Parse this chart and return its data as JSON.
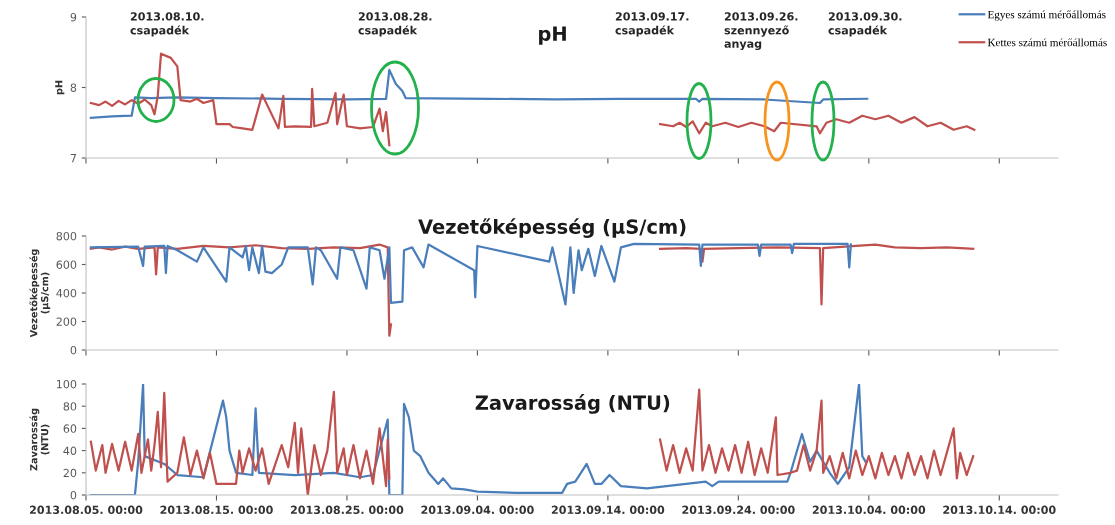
{
  "chart_data": [
    {
      "type": "line",
      "title": "pH",
      "ylabel": "pH",
      "legend": "top right",
      "tick_labels": "y",
      "xlim": [
        "2013-08-05",
        "2013-10-18T12:00"
      ],
      "xticks": [
        {
          "value": "2013-08-05",
          "label": null
        },
        {
          "value": "2013-08-15",
          "label": null
        },
        {
          "value": "2013-08-25",
          "label": null
        },
        {
          "value": "2013-09-04",
          "label": null
        },
        {
          "value": "2013-09-14",
          "label": null
        },
        {
          "value": "2013-09-24",
          "label": null
        },
        {
          "value": "2013-10-04",
          "label": null
        },
        {
          "value": "2013-10-14",
          "label": null
        }
      ],
      "ylim": [
        7,
        9
      ],
      "yticks": [
        7,
        8,
        9
      ],
      "annotations": [
        "2013.08.10.\ncsapadék",
        "2013.08.28.\ncsapadék",
        "2013.09.17.\ncsapadék",
        "2013.09.26.\nszennyező\nanyag",
        "2013.09.30.\ncsapadék"
      ],
      "series": [
        {
          "name": "Egyes számú mérőállomás",
          "color": "#4a7ebb",
          "x": [
            "2013-08-05T09:00",
            "2013-08-07T00:00",
            "2013-08-08T12:00",
            "2013-08-08T18:00",
            "2013-08-10T00:00",
            "2013-08-12T00:00",
            "2013-08-15T00:00",
            "2013-08-20T00:00",
            "2013-08-25T00:00",
            "2013-08-28T00:00",
            "2013-08-28T06:00",
            "2013-08-28T18:00",
            "2013-08-29T06:00",
            "2013-08-29T12:00",
            "2013-09-05T00:00",
            "2013-09-10T00:00",
            "2013-09-15T00:00",
            "2013-09-20T18:00",
            "2013-09-21T00:00",
            "2013-09-21T06:00",
            "2013-09-26T00:00",
            "2013-09-30T06:00",
            "2013-09-30T12:00",
            "2013-10-03T21:00"
          ],
          "values": [
            7.57,
            7.59,
            7.6,
            7.86,
            7.85,
            7.86,
            7.85,
            7.84,
            7.83,
            7.84,
            8.25,
            8.05,
            7.95,
            7.85,
            7.84,
            7.83,
            7.84,
            7.84,
            7.8,
            7.84,
            7.83,
            7.78,
            7.83,
            7.84
          ]
        },
        {
          "name": "Kettes számú mérőállomás",
          "color": "#c0504d",
          "x": [
            "2013-08-05T09:00",
            "2013-08-06T00:00",
            "2013-08-06T12:00",
            "2013-08-07T00:00",
            "2013-08-07T12:00",
            "2013-08-08T00:00",
            "2013-08-08T12:00",
            "2013-08-09T00:00",
            "2013-08-09T12:00",
            "2013-08-10T00:00",
            "2013-08-10T06:00",
            "2013-08-10T12:00",
            "2013-08-10T18:00",
            "2013-08-11T12:00",
            "2013-08-12T00:00",
            "2013-08-12T06:00",
            "2013-08-13T00:00",
            "2013-08-13T12:00",
            "2013-08-14T00:00",
            "2013-08-14T18:00",
            "2013-08-15T00:00",
            "2013-08-16T00:00",
            "2013-08-16T06:00",
            "2013-08-17T00:00",
            "2013-08-17T18:00",
            "2013-08-18T12:00",
            "2013-08-19T18:00",
            "2013-08-20T03:00",
            "2013-08-20T06:00",
            "2013-08-21T00:00",
            "2013-08-22T06:00",
            "2013-08-22T08:00",
            "2013-08-22T12:00",
            "2013-08-23T12:00",
            "2013-08-24T03:00",
            "2013-08-24T06:00",
            "2013-08-24T18:00",
            "2013-08-25T00:00",
            "2013-08-26T00:00",
            "2013-08-27T00:00",
            "2013-08-27T12:00",
            "2013-08-27T18:00",
            "2013-08-28T00:00",
            "2013-08-28T06:00",
            "2013-09-01T00:00",
            "2013-09-18T00:00",
            "2013-09-19T00:00",
            "2013-09-19T12:00",
            "2013-09-20T00:00",
            "2013-09-20T12:00",
            "2013-09-21T00:00",
            "2013-09-21T12:00",
            "2013-09-22T00:00",
            "2013-09-23T00:00",
            "2013-09-24T00:00",
            "2013-09-25T00:00",
            "2013-09-26T00:00",
            "2013-09-26T18:00",
            "2013-09-27T06:00",
            "2013-09-30T00:00",
            "2013-09-30T06:00",
            "2013-09-30T18:00",
            "2013-10-01T12:00",
            "2013-10-02T12:00",
            "2013-10-03T12:00",
            "2013-10-04T12:00",
            "2013-10-05T12:00",
            "2013-10-06T12:00",
            "2013-10-07T12:00",
            "2013-10-08T12:00",
            "2013-10-09T12:00",
            "2013-10-10T12:00",
            "2013-10-11T12:00",
            "2013-10-12T02:00"
          ],
          "values": [
            7.78,
            7.75,
            7.8,
            7.74,
            7.81,
            7.76,
            7.82,
            7.77,
            7.83,
            7.75,
            7.62,
            7.88,
            8.48,
            8.42,
            8.3,
            7.82,
            7.8,
            7.84,
            7.78,
            7.82,
            7.48,
            7.48,
            7.44,
            7.42,
            7.4,
            7.9,
            7.42,
            7.88,
            7.44,
            7.45,
            7.44,
            7.98,
            7.45,
            7.5,
            7.92,
            7.48,
            7.9,
            7.45,
            7.42,
            7.44,
            7.7,
            7.38,
            7.65,
            7.18,
            null,
            7.48,
            7.45,
            7.5,
            7.44,
            7.52,
            7.35,
            7.5,
            7.45,
            7.5,
            7.44,
            7.5,
            7.45,
            7.38,
            7.5,
            7.45,
            7.35,
            7.5,
            7.55,
            7.5,
            7.6,
            7.55,
            7.6,
            7.5,
            7.58,
            7.45,
            7.5,
            7.4,
            7.45,
            7.4
          ]
        }
      ]
    },
    {
      "type": "line",
      "title": "Vezetőképesség (µS/cm)",
      "ylabel": "Vezetőképesség\n(µS/cm)",
      "tick_labels": "y",
      "xlim": [
        "2013-08-05",
        "2013-10-18T12:00"
      ],
      "xticks": [
        {
          "value": "2013-08-05",
          "label": null
        },
        {
          "value": "2013-08-15",
          "label": null
        },
        {
          "value": "2013-08-25",
          "label": null
        },
        {
          "value": "2013-09-04",
          "label": null
        },
        {
          "value": "2013-09-14",
          "label": null
        },
        {
          "value": "2013-09-24",
          "label": null
        },
        {
          "value": "2013-10-04",
          "label": null
        },
        {
          "value": "2013-10-14",
          "label": null
        }
      ],
      "ylim": [
        0,
        800
      ],
      "yticks": [
        0,
        200,
        400,
        600,
        800
      ],
      "series": [
        {
          "color": "#c0504d",
          "x": [
            "2013-08-05T09:00",
            "2013-08-06T00:00",
            "2013-08-07T00:00",
            "2013-08-08T00:00",
            "2013-08-09T00:00",
            "2013-08-10T06:00",
            "2013-08-10T09:00",
            "2013-08-10T12:00",
            "2013-08-12T00:00",
            "2013-08-14T00:00",
            "2013-08-16T00:00",
            "2013-08-18T00:00",
            "2013-08-20T00:00",
            "2013-08-22T00:00",
            "2013-08-24T00:00",
            "2013-08-26T00:00",
            "2013-08-27T12:00",
            "2013-08-28T03:00",
            "2013-08-28T06:00",
            "2013-08-28T09:00",
            "2013-09-01T00:00",
            "2013-09-18T00:00",
            "2013-09-20T00:00",
            "2013-09-21T03:00",
            "2013-09-21T06:00",
            "2013-09-21T09:00",
            "2013-09-24T00:00",
            "2013-09-27T00:00",
            "2013-09-30T06:00",
            "2013-09-30T09:00",
            "2013-09-30T12:00",
            "2013-10-03T00:00",
            "2013-10-04T12:00",
            "2013-10-06T00:00",
            "2013-10-08T00:00",
            "2013-10-10T00:00",
            "2013-10-12T00:00"
          ],
          "values": [
            710,
            720,
            705,
            725,
            710,
            720,
            530,
            720,
            710,
            730,
            720,
            735,
            715,
            710,
            720,
            715,
            740,
            720,
            100,
            180,
            null,
            710,
            715,
            710,
            620,
            710,
            715,
            720,
            715,
            320,
            715,
            730,
            740,
            720,
            715,
            720,
            710
          ]
        },
        {
          "color": "#4a7ebb",
          "x": [
            "2013-08-05T09:00",
            "2013-08-09T00:00",
            "2013-08-09T09:00",
            "2013-08-09T12:00",
            "2013-08-11T00:00",
            "2013-08-11T03:00",
            "2013-08-11T06:00",
            "2013-08-12T00:00",
            "2013-08-13T12:00",
            "2013-08-14T00:00",
            "2013-08-15T18:00",
            "2013-08-16T00:00",
            "2013-08-17T00:00",
            "2013-08-17T06:00",
            "2013-08-17T12:00",
            "2013-08-17T18:00",
            "2013-08-18T06:00",
            "2013-08-18T12:00",
            "2013-08-18T18:00",
            "2013-08-19T06:00",
            "2013-08-20T00:00",
            "2013-08-20T12:00",
            "2013-08-22T00:00",
            "2013-08-22T09:00",
            "2013-08-22T15:00",
            "2013-08-23T00:00",
            "2013-08-24T06:00",
            "2013-08-24T12:00",
            "2013-08-25T12:00",
            "2013-08-26T12:00",
            "2013-08-26T18:00",
            "2013-08-27T12:00",
            "2013-08-27T21:00",
            "2013-08-28T06:00",
            "2013-08-28T09:00",
            "2013-08-29T06:00",
            "2013-08-29T09:00",
            "2013-08-30T00:00",
            "2013-08-30T21:00",
            "2013-08-31T06:00",
            "2013-09-03T18:00",
            "2013-09-03T20:00",
            "2013-09-04T00:00",
            "2013-09-09T12:00",
            "2013-09-09T18:00",
            "2013-09-10T18:00",
            "2013-09-11T03:00",
            "2013-09-11T09:00",
            "2013-09-11T18:00",
            "2013-09-12T00:00",
            "2013-09-12T12:00",
            "2013-09-13T00:00",
            "2013-09-13T12:00",
            "2013-09-14T12:00",
            "2013-09-15T00:00",
            "2013-09-16T00:00",
            "2013-09-21T00:00",
            "2013-09-21T03:00",
            "2013-09-21T06:00",
            "2013-09-25T12:00",
            "2013-09-25T15:00",
            "2013-09-25T18:00",
            "2013-09-28T00:00",
            "2013-09-28T03:00",
            "2013-09-28T06:00",
            "2013-10-02T09:00",
            "2013-10-02T12:00",
            "2013-10-02T15:00"
          ],
          "values": [
            720,
            725,
            590,
            725,
            730,
            540,
            730,
            700,
            620,
            720,
            480,
            720,
            650,
            730,
            560,
            720,
            540,
            730,
            550,
            540,
            600,
            720,
            720,
            460,
            720,
            700,
            500,
            720,
            700,
            430,
            720,
            700,
            500,
            720,
            330,
            340,
            700,
            720,
            580,
            740,
            560,
            370,
            730,
            620,
            720,
            320,
            720,
            400,
            700,
            560,
            710,
            520,
            730,
            480,
            720,
            745,
            740,
            590,
            740,
            740,
            660,
            740,
            740,
            680,
            745,
            745,
            580,
            740
          ]
        }
      ]
    },
    {
      "type": "line",
      "title": "Zavarosság (NTU)",
      "ylabel": "Zavarosság\n(NTU)",
      "xlim": [
        "2013-08-05",
        "2013-10-18T12:00"
      ],
      "xticks": [
        {
          "value": "2013-08-05",
          "label": "2013.08.05. 00:00"
        },
        {
          "value": "2013-08-15",
          "label": "2013.08.15. 00:00"
        },
        {
          "value": "2013-08-25",
          "label": "2013.08.25. 00:00"
        },
        {
          "value": "2013-09-04",
          "label": "2013.09.04. 00:00"
        },
        {
          "value": "2013-09-14",
          "label": "2013.09.14. 00:00"
        },
        {
          "value": "2013-09-24",
          "label": "2013.09.24. 00:00"
        },
        {
          "value": "2013-10-04",
          "label": "2013.10.04. 00:00"
        },
        {
          "value": "2013-10-14",
          "label": "2013.10.14. 00:00"
        }
      ],
      "ylim": [
        0,
        100
      ],
      "yticks": [
        0,
        20,
        40,
        60,
        80,
        100
      ],
      "series": [
        {
          "color": "#4a7ebb",
          "x": [
            "2013-08-05T09:00",
            "2013-08-08T18:00",
            "2013-08-09T00:00",
            "2013-08-09T09:00",
            "2013-08-09T12:00",
            "2013-08-11T00:00",
            "2013-08-12T00:00",
            "2013-08-14T00:00",
            "2013-08-15T12:00",
            "2013-08-15T18:00",
            "2013-08-16T00:00",
            "2013-08-16T12:00",
            "2013-08-17T18:00",
            "2013-08-18T00:00",
            "2013-08-18T06:00",
            "2013-08-21T00:00",
            "2013-08-24T00:00",
            "2013-08-26T00:00",
            "2013-08-27T00:00",
            "2013-08-28T03:00",
            "2013-08-28T06:00",
            "2013-08-29T06:00",
            "2013-08-29T09:00",
            "2013-08-29T18:00",
            "2013-08-30T03:00",
            "2013-08-30T15:00",
            "2013-08-31T06:00",
            "2013-09-01T00:00",
            "2013-09-01T09:00",
            "2013-09-02T00:00",
            "2013-09-03T00:00",
            "2013-09-04T00:00",
            "2013-09-07T00:00",
            "2013-09-10T12:00",
            "2013-09-10T21:00",
            "2013-09-11T12:00",
            "2013-09-12T09:00",
            "2013-09-13T00:00",
            "2013-09-13T12:00",
            "2013-09-14T03:00",
            "2013-09-15T00:00",
            "2013-09-17T00:00",
            "2013-09-21T12:00",
            "2013-09-22T00:00",
            "2013-09-22T12:00",
            "2013-09-27T18:00",
            "2013-09-28T00:00",
            "2013-09-28T21:00",
            "2013-09-29T12:00",
            "2013-09-30T00:00",
            "2013-10-01T00:00",
            "2013-10-01T15:00",
            "2013-10-02T12:00",
            "2013-10-03T06:00",
            "2013-10-03T12:00",
            "2013-10-03T18:00"
          ],
          "values": [
            0,
            0,
            30,
            100,
            35,
            28,
            18,
            16,
            85,
            70,
            40,
            20,
            18,
            78,
            20,
            18,
            20,
            16,
            18,
            68,
            0,
            0,
            82,
            70,
            40,
            35,
            20,
            10,
            15,
            6,
            5,
            3,
            2,
            2,
            10,
            12,
            28,
            10,
            10,
            18,
            8,
            6,
            12,
            8,
            12,
            12,
            20,
            55,
            30,
            40,
            20,
            10,
            25,
            100,
            35,
            30
          ]
        },
        {
          "color": "#c0504d",
          "x": [
            "2013-08-05T09:00",
            "2013-08-05T18:00",
            "2013-08-06T06:00",
            "2013-08-06T12:00",
            "2013-08-07T00:00",
            "2013-08-07T12:00",
            "2013-08-08T00:00",
            "2013-08-08T12:00",
            "2013-08-09T00:00",
            "2013-08-09T06:00",
            "2013-08-09T18:00",
            "2013-08-10T00:00",
            "2013-08-10T06:00",
            "2013-08-10T12:00",
            "2013-08-10T18:00",
            "2013-08-11T00:00",
            "2013-08-11T06:00",
            "2013-08-12T00:00",
            "2013-08-12T12:00",
            "2013-08-13T00:00",
            "2013-08-13T12:00",
            "2013-08-14T00:00",
            "2013-08-14T12:00",
            "2013-08-15T00:00",
            "2013-08-16T12:00",
            "2013-08-16T18:00",
            "2013-08-17T00:00",
            "2013-08-17T12:00",
            "2013-08-18T00:00",
            "2013-08-18T12:00",
            "2013-08-19T00:00",
            "2013-08-20T00:00",
            "2013-08-20T12:00",
            "2013-08-21T00:00",
            "2013-08-21T06:00",
            "2013-08-21T12:00",
            "2013-08-22T00:00",
            "2013-08-22T12:00",
            "2013-08-23T00:00",
            "2013-08-23T12:00",
            "2013-08-24T00:00",
            "2013-08-24T06:00",
            "2013-08-24T18:00",
            "2013-08-25T00:00",
            "2013-08-25T12:00",
            "2013-08-26T00:00",
            "2013-08-26T12:00",
            "2013-08-27T00:00",
            "2013-08-27T12:00",
            "2013-08-28T00:00",
            "2013-08-28T03:00",
            "2013-08-28T06:00",
            "2013-09-01T00:00",
            "2013-09-18T00:00",
            "2013-09-18T12:00",
            "2013-09-19T00:00",
            "2013-09-19T12:00",
            "2013-09-20T00:00",
            "2013-09-20T12:00",
            "2013-09-21T00:00",
            "2013-09-21T06:00",
            "2013-09-21T18:00",
            "2013-09-22T06:00",
            "2013-09-22T18:00",
            "2013-09-23T06:00",
            "2013-09-23T18:00",
            "2013-09-24T06:00",
            "2013-09-24T18:00",
            "2013-09-25T06:00",
            "2013-09-25T18:00",
            "2013-09-26T06:00",
            "2013-09-26T21:00",
            "2013-09-27T00:00",
            "2013-09-28T00:00",
            "2013-09-28T12:00",
            "2013-09-29T00:00",
            "2013-09-29T12:00",
            "2013-09-30T00:00",
            "2013-09-30T09:00",
            "2013-09-30T12:00",
            "2013-10-01T00:00",
            "2013-10-01T12:00",
            "2013-10-02T00:00",
            "2013-10-02T12:00",
            "2013-10-03T00:00",
            "2013-10-03T12:00",
            "2013-10-04T00:00",
            "2013-10-04T12:00",
            "2013-10-05T00:00",
            "2013-10-05T12:00",
            "2013-10-06T00:00",
            "2013-10-06T12:00",
            "2013-10-07T00:00",
            "2013-10-07T12:00",
            "2013-10-08T00:00",
            "2013-10-08T12:00",
            "2013-10-09T00:00",
            "2013-10-09T12:00",
            "2013-10-10T12:00",
            "2013-10-10T18:00",
            "2013-10-11T00:00",
            "2013-10-11T12:00",
            "2013-10-12T00:00"
          ],
          "values": [
            48,
            22,
            45,
            20,
            46,
            22,
            48,
            22,
            55,
            20,
            50,
            22,
            45,
            75,
            25,
            92,
            12,
            20,
            52,
            18,
            40,
            15,
            38,
            10,
            10,
            40,
            20,
            42,
            22,
            42,
            10,
            45,
            25,
            65,
            20,
            60,
            0,
            45,
            18,
            40,
            93,
            20,
            42,
            18,
            45,
            15,
            40,
            10,
            60,
            8,
            50,
            15,
            null,
            50,
            22,
            45,
            20,
            42,
            22,
            95,
            22,
            45,
            20,
            42,
            22,
            45,
            20,
            48,
            18,
            42,
            20,
            70,
            18,
            20,
            22,
            45,
            22,
            40,
            85,
            20,
            35,
            15,
            38,
            15,
            40,
            18,
            35,
            15,
            38,
            18,
            35,
            15,
            38,
            18,
            35,
            15,
            40,
            18,
            60,
            15,
            38,
            18,
            35
          ]
        }
      ]
    }
  ]
}
